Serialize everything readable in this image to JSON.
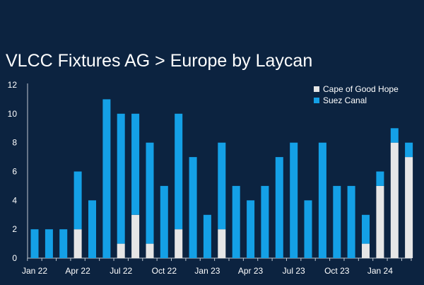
{
  "colors": {
    "background": "#0c2340",
    "cape": "#e6e6e6",
    "suez": "#14a0e6",
    "axis": "#bfc7d1"
  },
  "chart_data": {
    "type": "bar",
    "stacked": true,
    "title": "VLCC Fixtures AG > Europe by Laycan",
    "xlabel": "",
    "ylabel": "",
    "ylim": [
      0,
      12
    ],
    "yticks": [
      "0",
      "2",
      "4",
      "6",
      "8",
      "10",
      "12"
    ],
    "xtick_labels": [
      "Jan 22",
      "Apr 22",
      "Jul 22",
      "Oct 22",
      "Jan 23",
      "Apr 23",
      "Jul 23",
      "Oct 23",
      "Jan 24"
    ],
    "categories": [
      "Jan 22",
      "Feb 22",
      "Mar 22",
      "Apr 22",
      "May 22",
      "Jun 22",
      "Jul 22",
      "Aug 22",
      "Sep 22",
      "Oct 22",
      "Nov 22",
      "Dec 22",
      "Jan 23",
      "Feb 23",
      "Mar 23",
      "Apr 23",
      "May 23",
      "Jun 23",
      "Jul 23",
      "Aug 23",
      "Sep 23",
      "Oct 23",
      "Nov 23",
      "Dec 23",
      "Jan 24",
      "Feb 24",
      "Mar 24"
    ],
    "legend_position": "top-right",
    "series": [
      {
        "name": "Cape of Good Hope",
        "values": [
          0,
          0,
          0,
          2,
          0,
          0,
          1,
          3,
          1,
          0,
          2,
          0,
          0,
          2,
          0,
          0,
          0,
          0,
          0,
          0,
          0,
          0,
          0,
          1,
          5,
          8,
          7
        ]
      },
      {
        "name": "Suez Canal",
        "values": [
          2,
          2,
          2,
          4,
          4,
          11,
          9,
          7,
          7,
          5,
          8,
          7,
          3,
          6,
          5,
          4,
          5,
          7,
          8,
          4,
          8,
          5,
          5,
          2,
          1,
          1,
          1
        ]
      }
    ]
  }
}
